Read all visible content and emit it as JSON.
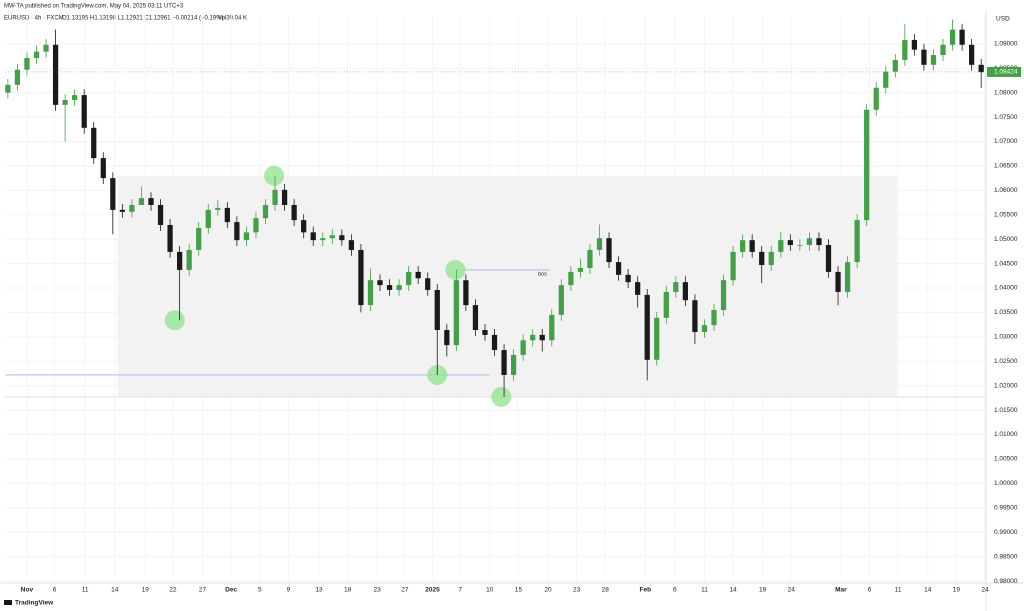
{
  "header": {
    "publisher": "MW-TA published on TradingView.com, May 04, 2025 03:11 UTC+3",
    "symbol": "EURUSD · 4h · FXCM",
    "ohlc": "O1.13195 H1.13198 L1.12921 C1.12961 −0.00214 (−0.19%)",
    "volume": "Vol39.04 K"
  },
  "footer": {
    "brand": "TradingView"
  },
  "chart_data": {
    "type": "candlestick",
    "currency": "USD",
    "up_color": "#43a047",
    "down_color": "#1a1a1a",
    "x": [
      -2,
      -1,
      0,
      1,
      2,
      3,
      4,
      5,
      6,
      7,
      8,
      9,
      10,
      11,
      12,
      13,
      14,
      15,
      16,
      17,
      18,
      19,
      20,
      21,
      22,
      23,
      24,
      25,
      26,
      27,
      28,
      29,
      30,
      31,
      32,
      33,
      34,
      35,
      36,
      37,
      38,
      39,
      40,
      41,
      42,
      43,
      44,
      45,
      46,
      47,
      48,
      49,
      50,
      51,
      52,
      53,
      54,
      55,
      56,
      57,
      58,
      59,
      60,
      61,
      62,
      63,
      64,
      65,
      66,
      67,
      68,
      69,
      70,
      71,
      72,
      73,
      74,
      75,
      76,
      77,
      78,
      79,
      80,
      81,
      82,
      83,
      84,
      85,
      86,
      87,
      88,
      89,
      90,
      91,
      92,
      93,
      94,
      95,
      96,
      97,
      98,
      99,
      100
    ],
    "open": [
      1.08,
      1.0816,
      1.0847,
      1.0871,
      1.0884,
      1.0898,
      1.0775,
      1.0785,
      1.0795,
      1.0728,
      1.0666,
      1.0625,
      1.056,
      1.0556,
      1.057,
      1.0584,
      1.057,
      1.0529,
      1.0474,
      1.0437,
      1.0478,
      1.0523,
      1.056,
      1.0564,
      1.0535,
      1.0498,
      1.0514,
      1.0543,
      1.057,
      1.0601,
      1.057,
      1.0539,
      1.0514,
      1.0498,
      1.0502,
      1.0508,
      1.0498,
      1.0478,
      1.0365,
      1.0416,
      1.0406,
      1.0396,
      1.0406,
      1.0433,
      1.042,
      1.0396,
      1.0314,
      1.0283,
      1.0416,
      1.0365,
      1.0314,
      1.0304,
      1.0273,
      1.0222,
      1.0263,
      1.0293,
      1.0304,
      1.0293,
      1.0345,
      1.0406,
      1.0433,
      1.0441,
      1.0478,
      1.0502,
      1.0453,
      1.0427,
      1.0412,
      1.0386,
      1.0253,
      1.0339,
      1.0392,
      1.0412,
      1.0375,
      1.031,
      1.0324,
      1.0355,
      1.0416,
      1.0474,
      1.0498,
      1.0474,
      1.0447,
      1.0474,
      1.0498,
      1.0488,
      1.0488,
      1.0502,
      1.0488,
      1.0433,
      1.0392,
      1.0453,
      1.0539,
      1.0765,
      1.081,
      1.0843,
      1.0867,
      1.0908,
      1.0888,
      1.0857,
      1.0877,
      1.0898,
      1.0929,
      1.0898,
      1.0857
    ],
    "high": [
      1.0828,
      1.0859,
      1.0883,
      1.0896,
      1.091,
      1.0929,
      1.0797,
      1.0807,
      1.0807,
      1.074,
      1.0678,
      1.0637,
      1.0572,
      1.0582,
      1.0608,
      1.0596,
      1.0582,
      1.0541,
      1.0486,
      1.049,
      1.0535,
      1.0572,
      1.058,
      1.0576,
      1.0547,
      1.0526,
      1.0555,
      1.0582,
      1.063,
      1.0613,
      1.0582,
      1.0551,
      1.0526,
      1.0514,
      1.052,
      1.052,
      1.051,
      1.049,
      1.044,
      1.0428,
      1.0418,
      1.0418,
      1.0445,
      1.0445,
      1.0432,
      1.0408,
      1.0326,
      1.0437,
      1.0428,
      1.0377,
      1.0326,
      1.0316,
      1.0285,
      1.0275,
      1.0305,
      1.0316,
      1.0316,
      1.0357,
      1.0418,
      1.0445,
      1.046,
      1.049,
      1.053,
      1.0514,
      1.0465,
      1.0439,
      1.0424,
      1.0398,
      1.0351,
      1.0404,
      1.0424,
      1.0424,
      1.0387,
      1.0336,
      1.0367,
      1.0428,
      1.0486,
      1.051,
      1.051,
      1.0486,
      1.0486,
      1.0515,
      1.051,
      1.05,
      1.0514,
      1.0514,
      1.05,
      1.0445,
      1.0465,
      1.0551,
      1.0777,
      1.0822,
      1.0855,
      1.0879,
      1.094,
      1.092,
      1.09,
      1.0889,
      1.091,
      1.095,
      1.0941,
      1.091,
      1.0869
    ],
    "low": [
      1.0788,
      1.0804,
      1.0835,
      1.0859,
      1.0872,
      1.0763,
      1.07,
      1.0773,
      1.0716,
      1.0654,
      1.0613,
      1.051,
      1.0544,
      1.0544,
      1.0572,
      1.0558,
      1.0517,
      1.0462,
      1.0334,
      1.0425,
      1.0466,
      1.0511,
      1.0548,
      1.0523,
      1.0486,
      1.0486,
      1.0502,
      1.0531,
      1.0558,
      1.0558,
      1.0527,
      1.0502,
      1.0486,
      1.0486,
      1.049,
      1.0486,
      1.0466,
      1.035,
      1.0353,
      1.0394,
      1.0384,
      1.0384,
      1.0394,
      1.0408,
      1.0384,
      1.0222,
      1.026,
      1.0271,
      1.0353,
      1.0302,
      1.0292,
      1.0261,
      1.0177,
      1.021,
      1.0251,
      1.0281,
      1.027,
      1.0281,
      1.0333,
      1.0394,
      1.0421,
      1.0429,
      1.0466,
      1.0441,
      1.0415,
      1.04,
      1.036,
      1.0211,
      1.0241,
      1.0327,
      1.038,
      1.0363,
      1.0285,
      1.0298,
      1.0312,
      1.0343,
      1.0404,
      1.0462,
      1.0462,
      1.041,
      1.0435,
      1.0462,
      1.0476,
      1.0476,
      1.0476,
      1.0476,
      1.0421,
      1.0365,
      1.038,
      1.0441,
      1.0527,
      1.0753,
      1.0798,
      1.0831,
      1.0855,
      1.0876,
      1.0845,
      1.0845,
      1.0865,
      1.0886,
      1.0886,
      1.0845,
      1.081
    ],
    "close": [
      1.0816,
      1.0847,
      1.0871,
      1.0884,
      1.0898,
      1.0775,
      1.0785,
      1.0795,
      1.0728,
      1.0666,
      1.0625,
      1.056,
      1.0556,
      1.057,
      1.0584,
      1.057,
      1.0529,
      1.0474,
      1.0437,
      1.0478,
      1.0523,
      1.056,
      1.0564,
      1.0535,
      1.0498,
      1.0514,
      1.0543,
      1.057,
      1.0601,
      1.057,
      1.0539,
      1.0514,
      1.0498,
      1.0502,
      1.0508,
      1.0498,
      1.0478,
      1.0365,
      1.0416,
      1.0406,
      1.0396,
      1.0406,
      1.0433,
      1.042,
      1.0396,
      1.0314,
      1.0283,
      1.0416,
      1.0365,
      1.0314,
      1.0304,
      1.0273,
      1.0222,
      1.0263,
      1.0293,
      1.0304,
      1.0293,
      1.0345,
      1.0406,
      1.0433,
      1.0441,
      1.0478,
      1.0502,
      1.0453,
      1.0427,
      1.0412,
      1.0386,
      1.0253,
      1.0339,
      1.0392,
      1.0412,
      1.0375,
      1.031,
      1.0324,
      1.0355,
      1.0416,
      1.0474,
      1.0498,
      1.0474,
      1.0447,
      1.0474,
      1.0498,
      1.0488,
      1.0488,
      1.0502,
      1.0488,
      1.0433,
      1.0392,
      1.0453,
      1.0539,
      1.0765,
      1.081,
      1.0843,
      1.0867,
      1.0908,
      1.0888,
      1.0857,
      1.0877,
      1.0898,
      1.0929,
      1.0898,
      1.0857,
      1.0842
    ],
    "last_price": 1.08424,
    "last_price_color": "#43a047",
    "xlim": [
      -2.3,
      100.4
    ],
    "ylim": [
      0.9796,
      1.0959
    ],
    "xticks": [
      {
        "value": 0,
        "label": "Nov"
      },
      {
        "value": 2.9,
        "label": "6"
      },
      {
        "value": 6.1,
        "label": "11"
      },
      {
        "value": 9.2,
        "label": "14"
      },
      {
        "value": 12.4,
        "label": "19"
      },
      {
        "value": 15.3,
        "label": "22"
      },
      {
        "value": 18.4,
        "label": "27"
      },
      {
        "value": 21.4,
        "label": "Dec"
      },
      {
        "value": 24.4,
        "label": "5"
      },
      {
        "value": 27.4,
        "label": "9"
      },
      {
        "value": 30.6,
        "label": "13"
      },
      {
        "value": 33.6,
        "label": "18"
      },
      {
        "value": 36.7,
        "label": "23"
      },
      {
        "value": 39.6,
        "label": "27"
      },
      {
        "value": 42.5,
        "label": "2025"
      },
      {
        "value": 45.4,
        "label": "7"
      },
      {
        "value": 48.5,
        "label": "10"
      },
      {
        "value": 51.5,
        "label": "15"
      },
      {
        "value": 54.6,
        "label": "20"
      },
      {
        "value": 57.6,
        "label": "23"
      },
      {
        "value": 60.6,
        "label": "28"
      },
      {
        "value": 64.8,
        "label": "Feb"
      },
      {
        "value": 67.9,
        "label": "6"
      },
      {
        "value": 71,
        "label": "11"
      },
      {
        "value": 74,
        "label": "14"
      },
      {
        "value": 77.1,
        "label": "19"
      },
      {
        "value": 80.1,
        "label": "24"
      },
      {
        "value": 85.3,
        "label": "Mar"
      },
      {
        "value": 88.3,
        "label": "6"
      },
      {
        "value": 91.3,
        "label": "11"
      },
      {
        "value": 94.4,
        "label": "14"
      },
      {
        "value": 97.4,
        "label": "19"
      },
      {
        "value": 100.4,
        "label": "24"
      }
    ],
    "yticks": [
      {
        "value": 0.98,
        "label": "0.98000"
      },
      {
        "value": 0.985,
        "label": "0.98500"
      },
      {
        "value": 0.99,
        "label": "0.99000"
      },
      {
        "value": 0.995,
        "label": "0.99500"
      },
      {
        "value": 1.0,
        "label": "1.00000"
      },
      {
        "value": 1.005,
        "label": "1.00500"
      },
      {
        "value": 1.01,
        "label": "1.01000"
      },
      {
        "value": 1.015,
        "label": "1.01500"
      },
      {
        "value": 1.02,
        "label": "1.02000"
      },
      {
        "value": 1.025,
        "label": "1.02500"
      },
      {
        "value": 1.03,
        "label": "1.03000"
      },
      {
        "value": 1.035,
        "label": "1.03500"
      },
      {
        "value": 1.04,
        "label": "1.04000"
      },
      {
        "value": 1.045,
        "label": "1.04500"
      },
      {
        "value": 1.05,
        "label": "1.05000"
      },
      {
        "value": 1.055,
        "label": "1.05500"
      },
      {
        "value": 1.06,
        "label": "1.06000"
      },
      {
        "value": 1.065,
        "label": "1.06500"
      },
      {
        "value": 1.07,
        "label": "1.07000"
      },
      {
        "value": 1.075,
        "label": "1.07500"
      },
      {
        "value": 1.08,
        "label": "1.08000"
      },
      {
        "value": 1.085,
        "label": "1.08500"
      },
      {
        "value": 1.09,
        "label": "1.09000"
      }
    ],
    "zone": {
      "x": [
        9.5,
        91.2
      ],
      "y": [
        1.0177,
        1.063
      ],
      "color": "#f2f2f2"
    },
    "markers": {
      "x": [
        15.5,
        25.9,
        43,
        44.9,
        49.7
      ],
      "y": [
        1.0334,
        1.063,
        1.0222,
        1.0437,
        1.0177
      ],
      "color": "#8fe38f"
    },
    "lines": [
      {
        "x": [
          -2.3,
          100.4
        ],
        "y": 1.0177,
        "color": "#dddddd"
      },
      {
        "x": [
          -2.3,
          48.5
        ],
        "y": 1.0222,
        "color": "#9db4e6"
      },
      {
        "x": [
          44.9,
          54.8
        ],
        "y": 1.0437,
        "color": "#9db4e6",
        "label": "bos"
      }
    ]
  }
}
